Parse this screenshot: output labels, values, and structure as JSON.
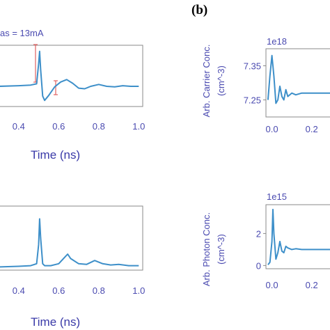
{
  "panel_labels": {
    "b": "(b)"
  },
  "annotations": {
    "bias": "as = 13mA"
  },
  "chart_data": [
    {
      "id": "a-top",
      "type": "line",
      "xlabel": "Time (ns)",
      "xlim": [
        0.3,
        1.02
      ],
      "ylim": [
        0,
        1
      ],
      "xticks": [
        "0.4",
        "0.6",
        "0.8",
        "1.0"
      ],
      "tick_values": [
        0.4,
        0.6,
        0.8,
        1.0
      ],
      "x": [
        0.3,
        0.4,
        0.46,
        0.49,
        0.5,
        0.505,
        0.51,
        0.52,
        0.53,
        0.55,
        0.58,
        0.61,
        0.64,
        0.67,
        0.7,
        0.73,
        0.76,
        0.8,
        0.84,
        0.88,
        0.92,
        0.96,
        1.0
      ],
      "y": [
        0.33,
        0.34,
        0.35,
        0.37,
        0.7,
        0.9,
        0.6,
        0.17,
        0.1,
        0.18,
        0.32,
        0.4,
        0.44,
        0.38,
        0.3,
        0.29,
        0.33,
        0.36,
        0.33,
        0.32,
        0.34,
        0.33,
        0.33
      ]
    },
    {
      "id": "a-bottom",
      "type": "line",
      "xlabel": "Time (ns)",
      "xlim": [
        0.3,
        1.02
      ],
      "ylim": [
        0,
        1
      ],
      "xticks": [
        "0.4",
        "0.6",
        "0.8",
        "1.0"
      ],
      "tick_values": [
        0.4,
        0.6,
        0.8,
        1.0
      ],
      "x": [
        0.3,
        0.4,
        0.46,
        0.49,
        0.5,
        0.505,
        0.51,
        0.52,
        0.53,
        0.56,
        0.6,
        0.63,
        0.645,
        0.66,
        0.7,
        0.74,
        0.78,
        0.82,
        0.86,
        0.9,
        0.95,
        1.0
      ],
      "y": [
        0.05,
        0.06,
        0.07,
        0.1,
        0.4,
        0.8,
        0.5,
        0.1,
        0.07,
        0.07,
        0.1,
        0.2,
        0.25,
        0.18,
        0.1,
        0.09,
        0.15,
        0.1,
        0.08,
        0.09,
        0.07,
        0.07
      ]
    },
    {
      "id": "b-carrier",
      "type": "line",
      "ylabel": "Arb. Carrier Conc.",
      "yunit": "(cm^-3)",
      "multiplier": "1e18",
      "xlim": [
        -0.03,
        0.32
      ],
      "ylim": [
        7.2,
        7.4
      ],
      "xticks": [
        "0.0",
        "0.2"
      ],
      "tick_values": [
        0.0,
        0.2
      ],
      "yticks": [
        "7.35",
        "7.25"
      ],
      "ytick_values": [
        7.35,
        7.25
      ],
      "x": [
        -0.02,
        -0.01,
        0.0,
        0.01,
        0.02,
        0.03,
        0.04,
        0.05,
        0.06,
        0.07,
        0.08,
        0.1,
        0.12,
        0.15,
        0.2,
        0.3
      ],
      "y": [
        7.25,
        7.32,
        7.38,
        7.32,
        7.24,
        7.25,
        7.29,
        7.26,
        7.25,
        7.28,
        7.26,
        7.27,
        7.265,
        7.27,
        7.27,
        7.27
      ]
    },
    {
      "id": "b-photon",
      "type": "line",
      "ylabel": "Arb. Photon Conc.",
      "yunit": "(cm^-3)",
      "multiplier": "1e15",
      "xlim": [
        -0.03,
        0.32
      ],
      "ylim": [
        -0.2,
        3.8
      ],
      "xticks": [
        "0.0",
        "0.2"
      ],
      "tick_values": [
        0.0,
        0.2
      ],
      "yticks": [
        "2",
        "0"
      ],
      "ytick_values": [
        2,
        0
      ],
      "x": [
        -0.02,
        -0.01,
        0.0,
        0.005,
        0.01,
        0.02,
        0.03,
        0.04,
        0.05,
        0.06,
        0.07,
        0.08,
        0.1,
        0.12,
        0.15,
        0.2,
        0.3
      ],
      "y": [
        0.05,
        0.2,
        1.5,
        3.5,
        2.0,
        0.4,
        0.8,
        1.5,
        0.9,
        0.8,
        1.2,
        1.1,
        1.0,
        1.05,
        1.0,
        1.0,
        1.0
      ]
    }
  ]
}
